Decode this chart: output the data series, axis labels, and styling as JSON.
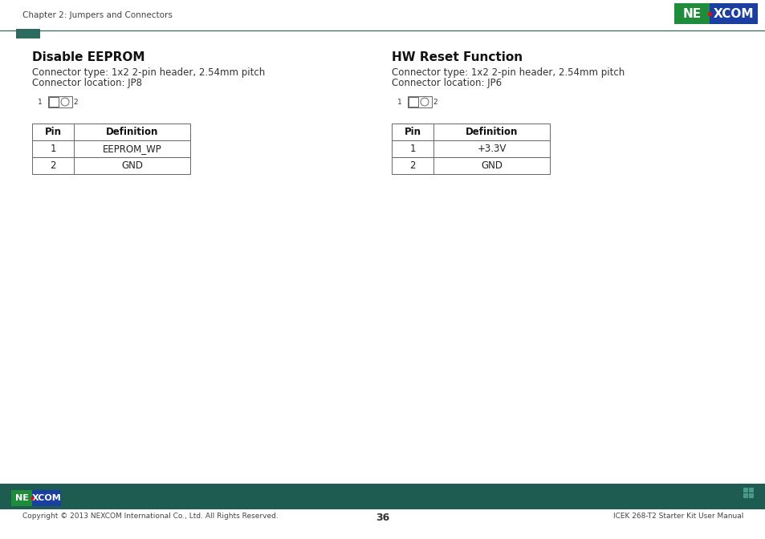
{
  "page_header_text": "Chapter 2: Jumpers and Connectors",
  "header_line_color": "#1a5c52",
  "header_square_color": "#2d6b5e",
  "bg_color": "#ffffff",
  "left_title": "Disable EEPROM",
  "left_line1": "Connector type: 1x2 2-pin header, 2.54mm pitch",
  "left_line2": "Connector location: JP8",
  "left_table_headers": [
    "Pin",
    "Definition"
  ],
  "left_table_rows": [
    [
      "1",
      "EEPROM_WP"
    ],
    [
      "2",
      "GND"
    ]
  ],
  "right_title": "HW Reset Function",
  "right_line1": "Connector type: 1x2 2-pin header, 2.54mm pitch",
  "right_line2": "Connector location: JP6",
  "right_table_headers": [
    "Pin",
    "Definition"
  ],
  "right_table_rows": [
    [
      "1",
      "+3.3V"
    ],
    [
      "2",
      "GND"
    ]
  ],
  "footer_bar_color": "#1e5c52",
  "footer_copyright": "Copyright © 2013 NEXCOM International Co., Ltd. All Rights Reserved.",
  "footer_page": "36",
  "footer_right_text": "ICEK 268-T2 Starter Kit User Manual",
  "nexcom_green": "#1e8c3a",
  "nexcom_blue": "#1a3fa0",
  "title_fontsize": 11,
  "body_fontsize": 8.5,
  "table_fontsize": 8.5,
  "header_fontsize": 7.5
}
